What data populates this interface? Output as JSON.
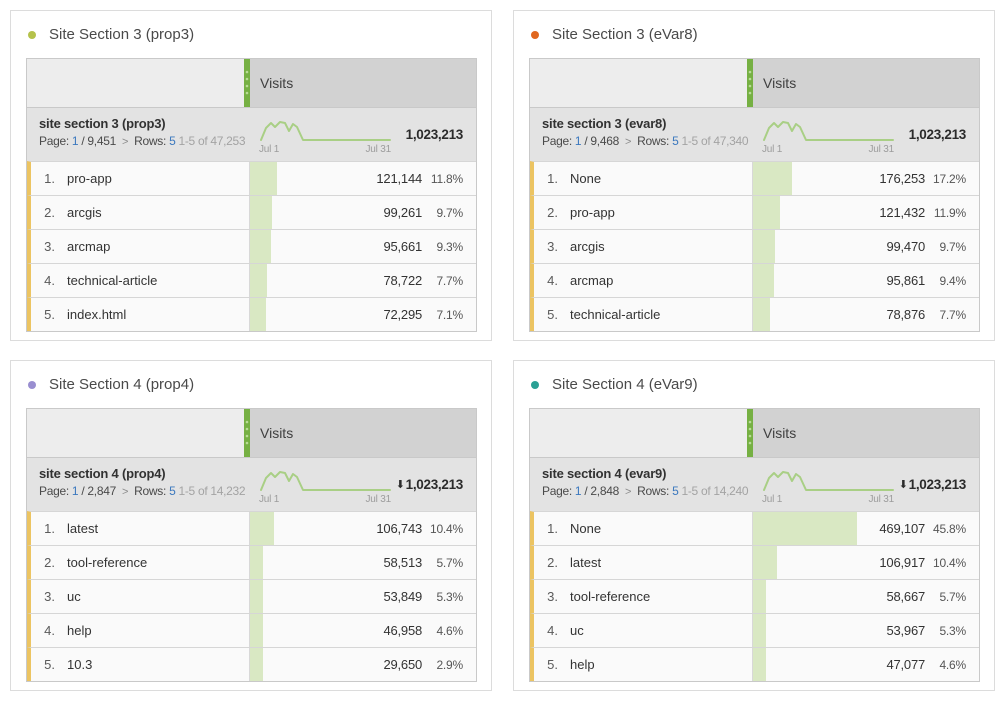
{
  "icons": {
    "breakdown_arrow_glyph": "⬇",
    "pagination_chevron_glyph": ">"
  },
  "colors": {
    "bullet_prop3": "#b5c24b",
    "bullet_evar8": "#e0671f",
    "bullet_prop4": "#998ed0",
    "bullet_evar9": "#2aa094",
    "column_handle_green": "#76b043",
    "row_bar_green": "#d9e8c3",
    "row_accent_yellow": "#ecc462",
    "link_blue": "#3b78be",
    "sparkline_green": "#a9cf85"
  },
  "panels": [
    {
      "title": "Site Section 3 (prop3)",
      "dot_color": "#b5c24b",
      "metric_header": "Visits",
      "table_title": "site section 3 (prop3)",
      "page_label": "Page:",
      "page_current": "1",
      "page_total": "/ 9,451",
      "rows_label": "Rows:",
      "rows_value": "5",
      "range_text": "1-5 of 47,253",
      "spark_start": "Jul 1",
      "spark_end": "Jul 31",
      "total": "1,023,213",
      "rows": [
        {
          "rank": "1.",
          "name": "pro-app",
          "value": "121,144",
          "pct": "11.8%",
          "bar": 11.8
        },
        {
          "rank": "2.",
          "name": "arcgis",
          "value": "99,261",
          "pct": "9.7%",
          "bar": 9.7
        },
        {
          "rank": "3.",
          "name": "arcmap",
          "value": "95,661",
          "pct": "9.3%",
          "bar": 9.3
        },
        {
          "rank": "4.",
          "name": "technical-article",
          "value": "78,722",
          "pct": "7.7%",
          "bar": 7.7
        },
        {
          "rank": "5.",
          "name": "index.html",
          "value": "72,295",
          "pct": "7.1%",
          "bar": 7.1
        }
      ]
    },
    {
      "title": "Site Section 3 (eVar8)",
      "dot_color": "#e0671f",
      "metric_header": "Visits",
      "table_title": "site section 3 (evar8)",
      "page_label": "Page:",
      "page_current": "1",
      "page_total": "/ 9,468",
      "rows_label": "Rows:",
      "rows_value": "5",
      "range_text": "1-5 of 47,340",
      "spark_start": "Jul 1",
      "spark_end": "Jul 31",
      "total": "1,023,213",
      "rows": [
        {
          "rank": "1.",
          "name": "None",
          "value": "176,253",
          "pct": "17.2%",
          "bar": 17.2
        },
        {
          "rank": "2.",
          "name": "pro-app",
          "value": "121,432",
          "pct": "11.9%",
          "bar": 11.9
        },
        {
          "rank": "3.",
          "name": "arcgis",
          "value": "99,470",
          "pct": "9.7%",
          "bar": 9.7
        },
        {
          "rank": "4.",
          "name": "arcmap",
          "value": "95,861",
          "pct": "9.4%",
          "bar": 9.4
        },
        {
          "rank": "5.",
          "name": "technical-article",
          "value": "78,876",
          "pct": "7.7%",
          "bar": 7.7
        }
      ]
    },
    {
      "title": "Site Section 4 (prop4)",
      "dot_color": "#998ed0",
      "metric_header": "Visits",
      "table_title": "site section 4 (prop4)",
      "page_label": "Page:",
      "page_current": "1",
      "page_total": "/ 2,847",
      "rows_label": "Rows:",
      "rows_value": "5",
      "range_text": "1-5 of 14,232",
      "spark_start": "Jul 1",
      "spark_end": "Jul 31",
      "total": "1,023,213",
      "rows": [
        {
          "rank": "1.",
          "name": "latest",
          "value": "106,743",
          "pct": "10.4%",
          "bar": 10.4
        },
        {
          "rank": "2.",
          "name": "tool-reference",
          "value": "58,513",
          "pct": "5.7%",
          "bar": 5.7
        },
        {
          "rank": "3.",
          "name": "uc",
          "value": "53,849",
          "pct": "5.3%",
          "bar": 5.3
        },
        {
          "rank": "4.",
          "name": "help",
          "value": "46,958",
          "pct": "4.6%",
          "bar": 4.6
        },
        {
          "rank": "5.",
          "name": "10.3",
          "value": "29,650",
          "pct": "2.9%",
          "bar": 2.9
        }
      ]
    },
    {
      "title": "Site Section 4 (eVar9)",
      "dot_color": "#2aa094",
      "metric_header": "Visits",
      "table_title": "site section 4 (evar9)",
      "page_label": "Page:",
      "page_current": "1",
      "page_total": "/ 2,848",
      "rows_label": "Rows:",
      "rows_value": "5",
      "range_text": "1-5 of 14,240",
      "spark_start": "Jul 1",
      "spark_end": "Jul 31",
      "total": "1,023,213",
      "rows": [
        {
          "rank": "1.",
          "name": "None",
          "value": "469,107",
          "pct": "45.8%",
          "bar": 45.8
        },
        {
          "rank": "2.",
          "name": "latest",
          "value": "106,917",
          "pct": "10.4%",
          "bar": 10.4
        },
        {
          "rank": "3.",
          "name": "tool-reference",
          "value": "58,667",
          "pct": "5.7%",
          "bar": 5.7
        },
        {
          "rank": "4.",
          "name": "uc",
          "value": "53,967",
          "pct": "5.3%",
          "bar": 5.3
        },
        {
          "rank": "5.",
          "name": "help",
          "value": "47,077",
          "pct": "4.6%",
          "bar": 4.6
        }
      ]
    }
  ]
}
